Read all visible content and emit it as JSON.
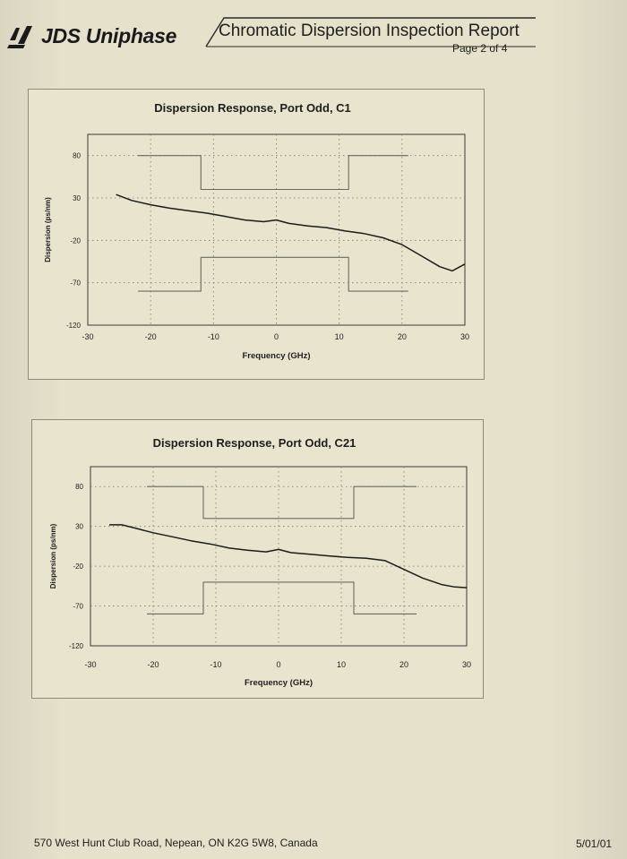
{
  "header": {
    "company": "JDS Uniphase",
    "report_title": "Chromatic Dispersion Inspection Report",
    "page": "Page 2 of 4"
  },
  "footer": {
    "address": "570 West Hunt Club Road, Nepean, ON K2G 5W8, Canada",
    "date": "5/01/01"
  },
  "chart_data": [
    {
      "type": "line",
      "title": "Dispersion Response, Port Odd, C1",
      "xlabel": "Frequency (GHz)",
      "ylabel": "Dispersion (ps/nm)",
      "xlim": [
        -30,
        30
      ],
      "ylim": [
        -120,
        105
      ],
      "xticks": [
        -30,
        -20,
        -10,
        0,
        10,
        20,
        30
      ],
      "yticks": [
        80,
        30,
        -20,
        -70,
        -120
      ],
      "grid": true,
      "series": [
        {
          "x": [
            -25.5,
            -23,
            -20,
            -17,
            -14,
            -11,
            -8,
            -5,
            -2,
            0,
            2,
            5,
            8,
            11,
            14,
            17,
            20,
            23,
            26,
            28,
            30
          ],
          "y": [
            34,
            27,
            22,
            18,
            15,
            12,
            8,
            4,
            2,
            4,
            0,
            -3,
            -5,
            -9,
            -12,
            -17,
            -25,
            -38,
            -51,
            -56,
            -48
          ]
        },
        {
          "x": [
            -22,
            -12,
            -12,
            11.5,
            11.5,
            21
          ],
          "y": [
            80,
            80,
            40,
            40,
            80,
            80
          ]
        },
        {
          "x": [
            -22,
            -12,
            -12,
            11.5,
            11.5,
            21
          ],
          "y": [
            -80,
            -80,
            -40,
            -40,
            -80,
            -80
          ]
        }
      ]
    },
    {
      "type": "line",
      "title": "Dispersion Response, Port Odd, C21",
      "xlabel": "Frequency (GHz)",
      "ylabel": "Dispersion (ps/nm)",
      "xlim": [
        -30,
        30
      ],
      "ylim": [
        -120,
        105
      ],
      "xticks": [
        -30,
        -20,
        -10,
        0,
        10,
        20,
        30
      ],
      "yticks": [
        80,
        30,
        -20,
        -70,
        -120
      ],
      "grid": true,
      "series": [
        {
          "x": [
            -27,
            -25,
            -23,
            -20,
            -17,
            -14,
            -11,
            -8,
            -5,
            -2,
            0,
            2,
            5,
            8,
            11,
            14,
            17,
            20,
            23,
            26,
            28,
            30
          ],
          "y": [
            32,
            32,
            28,
            22,
            17,
            12,
            8,
            3,
            0,
            -2,
            1,
            -3,
            -5,
            -7,
            -9,
            -10,
            -13,
            -24,
            -35,
            -43,
            -46,
            -47
          ]
        },
        {
          "x": [
            -21,
            -12,
            -12,
            12,
            12,
            22
          ],
          "y": [
            80,
            80,
            40,
            40,
            80,
            80
          ]
        },
        {
          "x": [
            -21,
            -12,
            -12,
            12,
            12,
            22
          ],
          "y": [
            -80,
            -80,
            -40,
            -40,
            -80,
            -80
          ]
        }
      ]
    }
  ]
}
